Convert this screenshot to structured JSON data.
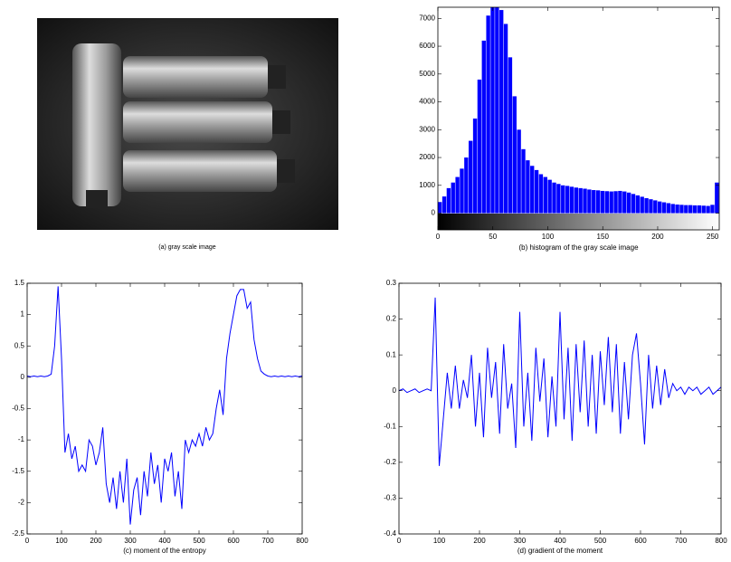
{
  "chart_data": [
    {
      "type": "image",
      "caption": "(a) gray scale image"
    },
    {
      "type": "histogram",
      "caption": "(b) histogram of the gray scale image",
      "color": "#0000ff",
      "bins": [
        0,
        4,
        8,
        12,
        16,
        20,
        24,
        28,
        32,
        36,
        40,
        44,
        48,
        52,
        56,
        60,
        64,
        68,
        72,
        76,
        80,
        84,
        88,
        92,
        96,
        100,
        104,
        108,
        112,
        116,
        120,
        124,
        128,
        132,
        136,
        140,
        144,
        148,
        152,
        156,
        160,
        164,
        168,
        172,
        176,
        180,
        184,
        188,
        192,
        196,
        200,
        204,
        208,
        212,
        216,
        220,
        224,
        228,
        232,
        236,
        240,
        244,
        248,
        252,
        256
      ],
      "values": [
        400,
        600,
        900,
        1100,
        1300,
        1600,
        2000,
        2600,
        3400,
        4800,
        6200,
        7100,
        7400,
        7400,
        7300,
        6800,
        5600,
        4200,
        3000,
        2300,
        1900,
        1700,
        1550,
        1400,
        1300,
        1200,
        1100,
        1050,
        1000,
        980,
        950,
        920,
        900,
        880,
        850,
        830,
        820,
        800,
        790,
        780,
        790,
        800,
        780,
        740,
        690,
        640,
        590,
        540,
        500,
        460,
        420,
        390,
        360,
        330,
        310,
        300,
        290,
        290,
        280,
        280,
        270,
        260,
        300,
        1100
      ],
      "xlim": [
        0,
        256
      ],
      "xticks": [
        0,
        50,
        100,
        150,
        200,
        250
      ],
      "ylim": [
        -600,
        7400
      ],
      "yticks": [
        0,
        1000,
        2000,
        3000,
        4000,
        5000,
        6000,
        7000
      ]
    },
    {
      "type": "line",
      "caption": "(c) moment of the entropy",
      "color": "#0000ff",
      "x": [
        0,
        10,
        20,
        30,
        40,
        50,
        60,
        70,
        80,
        90,
        100,
        110,
        120,
        130,
        140,
        150,
        160,
        170,
        180,
        190,
        200,
        210,
        220,
        230,
        240,
        250,
        260,
        270,
        280,
        290,
        300,
        310,
        320,
        330,
        340,
        350,
        360,
        370,
        380,
        390,
        400,
        410,
        420,
        430,
        440,
        450,
        460,
        470,
        480,
        490,
        500,
        510,
        520,
        530,
        540,
        550,
        560,
        570,
        580,
        590,
        600,
        610,
        620,
        630,
        640,
        650,
        660,
        670,
        680,
        690,
        700,
        710,
        720,
        730,
        740,
        750,
        760,
        770,
        780,
        790,
        800
      ],
      "values": [
        0.02,
        0.01,
        0.02,
        0.01,
        0.02,
        0.01,
        0.02,
        0.05,
        0.5,
        1.45,
        0.3,
        -1.2,
        -0.9,
        -1.3,
        -1.1,
        -1.5,
        -1.4,
        -1.5,
        -1.0,
        -1.1,
        -1.4,
        -1.2,
        -0.8,
        -1.7,
        -2.0,
        -1.6,
        -2.1,
        -1.5,
        -2.0,
        -1.3,
        -2.35,
        -1.8,
        -1.6,
        -2.2,
        -1.5,
        -1.9,
        -1.2,
        -1.7,
        -1.4,
        -2.0,
        -1.3,
        -1.5,
        -1.2,
        -1.9,
        -1.5,
        -2.1,
        -1.0,
        -1.2,
        -1.0,
        -1.1,
        -0.9,
        -1.1,
        -0.8,
        -1.0,
        -0.9,
        -0.5,
        -0.2,
        -0.6,
        0.3,
        0.7,
        1.0,
        1.3,
        1.4,
        1.4,
        1.1,
        1.2,
        0.6,
        0.3,
        0.1,
        0.05,
        0.02,
        0.01,
        0.02,
        0.01,
        0.02,
        0.01,
        0.02,
        0.01,
        0.02,
        0.01,
        0.02
      ],
      "xlim": [
        0,
        800
      ],
      "xticks": [
        0,
        100,
        200,
        300,
        400,
        500,
        600,
        700,
        800
      ],
      "ylim": [
        -2.5,
        1.5
      ],
      "yticks": [
        -2.5,
        -2,
        -1.5,
        -1,
        -0.5,
        0,
        0.5,
        1,
        1.5
      ]
    },
    {
      "type": "line",
      "caption": "(d) gradient of the moment",
      "color": "#0000ff",
      "x": [
        0,
        10,
        20,
        30,
        40,
        50,
        60,
        70,
        80,
        90,
        100,
        110,
        120,
        130,
        140,
        150,
        160,
        170,
        180,
        190,
        200,
        210,
        220,
        230,
        240,
        250,
        260,
        270,
        280,
        290,
        300,
        310,
        320,
        330,
        340,
        350,
        360,
        370,
        380,
        390,
        400,
        410,
        420,
        430,
        440,
        450,
        460,
        470,
        480,
        490,
        500,
        510,
        520,
        530,
        540,
        550,
        560,
        570,
        580,
        590,
        600,
        610,
        620,
        630,
        640,
        650,
        660,
        670,
        680,
        690,
        700,
        710,
        720,
        730,
        740,
        750,
        760,
        770,
        780,
        790,
        800
      ],
      "values": [
        0.0,
        0.005,
        -0.005,
        0.0,
        0.005,
        -0.005,
        0.0,
        0.005,
        0.0,
        0.26,
        -0.21,
        -0.08,
        0.05,
        -0.05,
        0.07,
        -0.05,
        0.03,
        -0.02,
        0.1,
        -0.1,
        0.05,
        -0.13,
        0.12,
        -0.02,
        0.08,
        -0.12,
        0.13,
        -0.05,
        0.02,
        -0.16,
        0.22,
        -0.1,
        0.05,
        -0.14,
        0.12,
        -0.03,
        0.09,
        -0.13,
        0.04,
        -0.1,
        0.22,
        -0.08,
        0.12,
        -0.14,
        0.13,
        -0.06,
        0.14,
        -0.1,
        0.1,
        -0.12,
        0.11,
        -0.04,
        0.15,
        -0.06,
        0.13,
        -0.12,
        0.08,
        -0.08,
        0.1,
        0.16,
        0.02,
        -0.15,
        0.1,
        -0.05,
        0.07,
        -0.04,
        0.06,
        -0.02,
        0.02,
        0.0,
        0.01,
        -0.01,
        0.01,
        0.0,
        0.01,
        -0.01,
        0.0,
        0.01,
        -0.01,
        0.0,
        0.01
      ],
      "xlim": [
        0,
        800
      ],
      "xticks": [
        0,
        100,
        200,
        300,
        400,
        500,
        600,
        700,
        800
      ],
      "ylim": [
        -0.4,
        0.3
      ],
      "yticks": [
        -0.4,
        -0.3,
        -0.2,
        -0.1,
        0,
        0.1,
        0.2,
        0.3
      ]
    }
  ]
}
